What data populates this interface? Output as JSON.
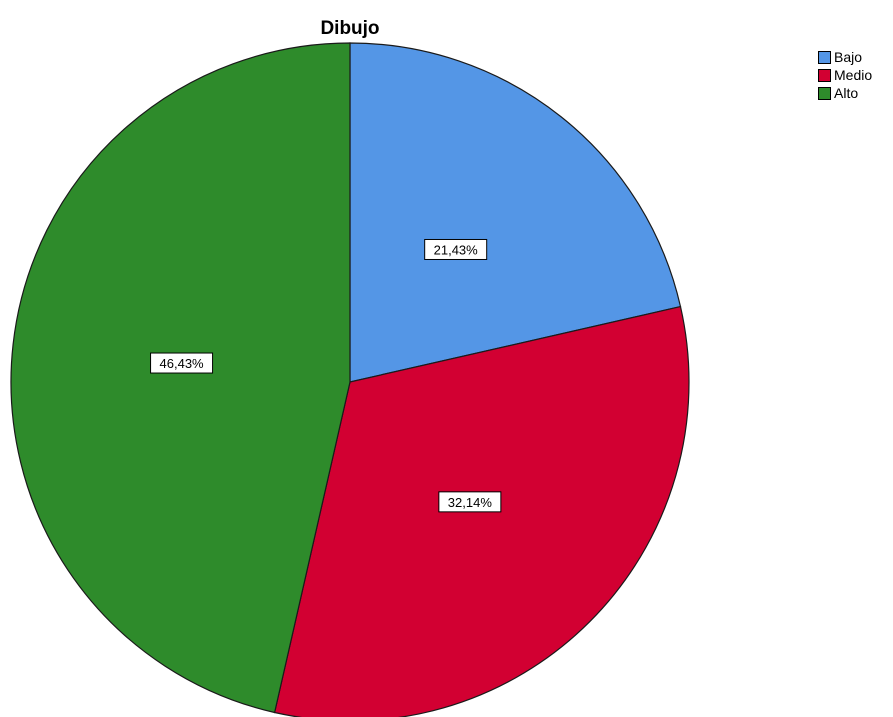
{
  "chart_data": {
    "type": "pie",
    "title": "Dibujo",
    "categories": [
      "Bajo",
      "Medio",
      "Alto"
    ],
    "values": [
      21.43,
      32.14,
      46.43
    ],
    "labels": [
      "21,43%",
      "32,14%",
      "46,43%"
    ],
    "colors": [
      "#5496e6",
      "#d20032",
      "#2e8b2b"
    ],
    "start_angle": "12 o'clock",
    "direction": "clockwise",
    "legend_position": "top-right"
  }
}
